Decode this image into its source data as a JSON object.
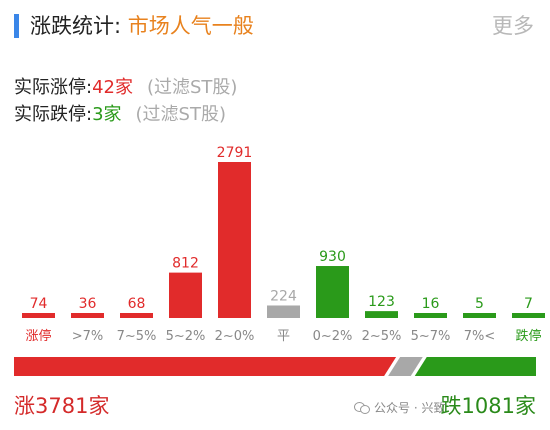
{
  "header": {
    "title": "涨跌统计:",
    "mood": "市场人气一般",
    "more": "更多"
  },
  "limits": {
    "up_label": "实际涨停:",
    "up_value": "42家",
    "down_label": "实际跌停:",
    "down_value": "3家",
    "filter_note": "(过滤ST股)"
  },
  "chart_data": {
    "type": "bar",
    "categories": [
      "涨停",
      ">7%",
      "7~5%",
      "5~2%",
      "2~0%",
      "平",
      "0~2%",
      "2~5%",
      "5~7%",
      "7%<",
      "跌停"
    ],
    "values": [
      74,
      36,
      68,
      812,
      2791,
      224,
      930,
      123,
      16,
      5,
      7
    ],
    "ylim": [
      0,
      2791
    ],
    "grid": false,
    "legend": "none",
    "colors": [
      "#e12b2b",
      "#e12b2b",
      "#e12b2b",
      "#e12b2b",
      "#e12b2b",
      "#a8a8a8",
      "#2a9a1a",
      "#2a9a1a",
      "#2a9a1a",
      "#2a9a1a",
      "#2a9a1a"
    ],
    "label_colors": [
      "#e12b2b",
      "#888888",
      "#888888",
      "#888888",
      "#888888",
      "#888888",
      "#888888",
      "#888888",
      "#888888",
      "#888888",
      "#2a9a1a"
    ]
  },
  "breadth": {
    "up_count": 3781,
    "flat_count": 224,
    "down_count": 1081,
    "up_text": "涨3781家",
    "down_text": "跌1081家",
    "up_color": "#e12b2b",
    "flat_color": "#a8a8a8",
    "down_color": "#2a9a1a"
  },
  "watermark": {
    "text": "公众号 · 兴致"
  }
}
